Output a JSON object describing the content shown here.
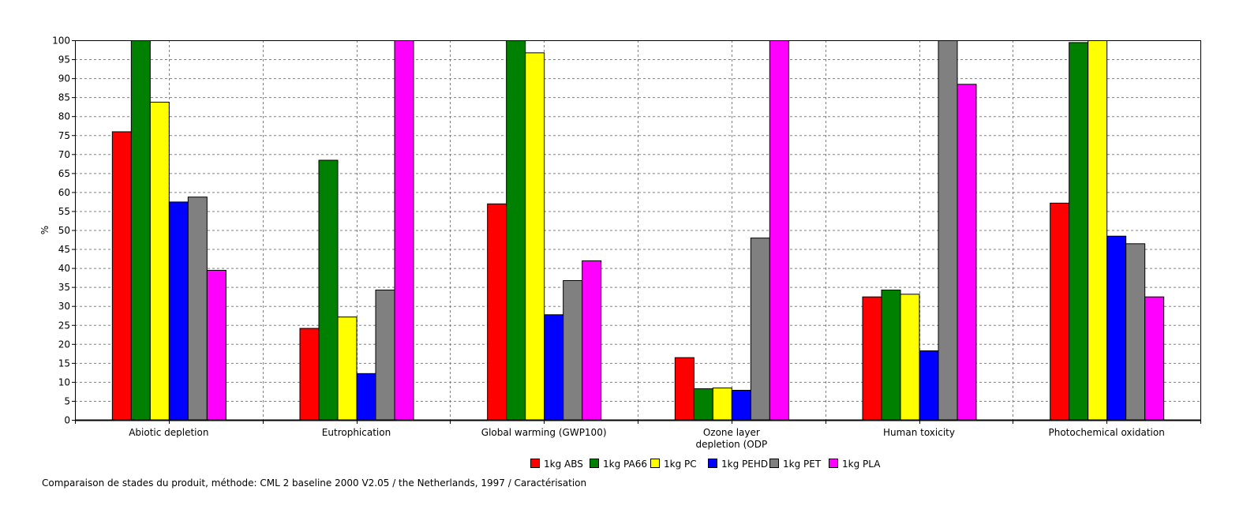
{
  "chart_data": {
    "type": "bar",
    "ylabel": "%",
    "ylim": [
      0,
      100
    ],
    "yticks": [
      0,
      5,
      10,
      15,
      20,
      25,
      30,
      35,
      40,
      45,
      50,
      55,
      60,
      65,
      70,
      75,
      80,
      85,
      90,
      95,
      100
    ],
    "grid": true,
    "legend_position": "bottom",
    "categories": [
      [
        "Abiotic depletion"
      ],
      [
        "Eutrophication"
      ],
      [
        "Global warming (GWP100)"
      ],
      [
        "Ozone layer",
        "depletion (ODP"
      ],
      [
        "Human toxicity"
      ],
      [
        "Photochemical oxidation"
      ]
    ],
    "series": [
      {
        "name": "1kg ABS",
        "color": "#ff0000",
        "values": [
          76,
          24.2,
          57,
          16.5,
          32.5,
          57.2
        ]
      },
      {
        "name": "1kg PA66",
        "color": "#008000",
        "values": [
          100,
          68.5,
          100,
          8.3,
          34.3,
          99.5
        ]
      },
      {
        "name": "1kg PC",
        "color": "#ffff00",
        "values": [
          83.8,
          27.2,
          96.8,
          8.5,
          33.2,
          100
        ]
      },
      {
        "name": "1kg PEHD",
        "color": "#0000ff",
        "values": [
          57.5,
          12.3,
          27.8,
          7.9,
          18.3,
          48.5
        ]
      },
      {
        "name": "1kg PET",
        "color": "#808080",
        "values": [
          58.8,
          34.3,
          36.8,
          48,
          100,
          46.5
        ]
      },
      {
        "name": "1kg PLA",
        "color": "#ff00ff",
        "values": [
          39.5,
          100,
          42,
          100,
          88.5,
          32.5
        ]
      }
    ]
  },
  "caption": "Comparaison de stades du produit, méthode: CML 2 baseline 2000 V2.05 / the Netherlands, 1997 / Caractérisation"
}
